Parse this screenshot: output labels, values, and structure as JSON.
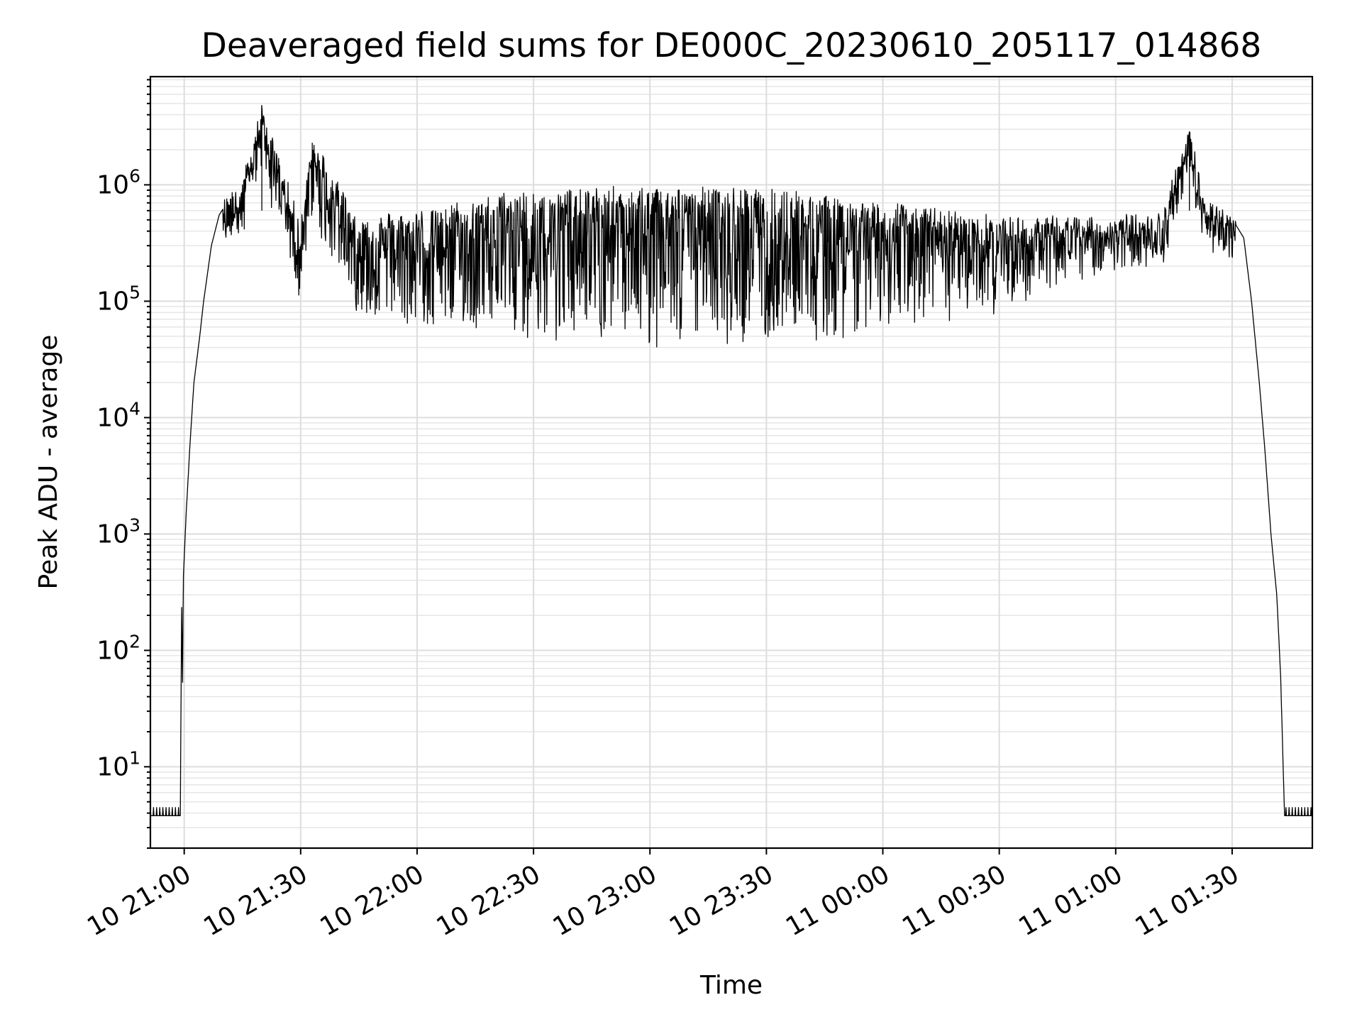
{
  "chart_data": {
    "type": "line",
    "title": "Deaveraged field sums for DE000C_20230610_205117_014868",
    "xlabel": "Time",
    "ylabel": "Peak ADU - average",
    "yscale": "log",
    "ylim": [
      2,
      8500000
    ],
    "xlim": [
      "2023-06-10 20:51:17",
      "2023-06-11 01:50:40"
    ],
    "grid": true,
    "line_color": "#000000",
    "x_ticks": [
      {
        "time": "2023-06-10 21:00:00",
        "label": "10 21:00"
      },
      {
        "time": "2023-06-10 21:30:00",
        "label": "10 21:30"
      },
      {
        "time": "2023-06-10 22:00:00",
        "label": "10 22:00"
      },
      {
        "time": "2023-06-10 22:30:00",
        "label": "10 22:30"
      },
      {
        "time": "2023-06-10 23:00:00",
        "label": "10 23:00"
      },
      {
        "time": "2023-06-10 23:30:00",
        "label": "10 23:30"
      },
      {
        "time": "2023-06-11 00:00:00",
        "label": "11 00:00"
      },
      {
        "time": "2023-06-11 00:30:00",
        "label": "11 00:30"
      },
      {
        "time": "2023-06-11 01:00:00",
        "label": "11 01:00"
      },
      {
        "time": "2023-06-11 01:30:00",
        "label": "11 01:30"
      }
    ],
    "y_ticks": [
      {
        "value": 10,
        "base": "10",
        "exp": "1"
      },
      {
        "value": 100,
        "base": "10",
        "exp": "2"
      },
      {
        "value": 1000,
        "base": "10",
        "exp": "3"
      },
      {
        "value": 10000,
        "base": "10",
        "exp": "4"
      },
      {
        "value": 100000,
        "base": "10",
        "exp": "5"
      },
      {
        "value": 1000000,
        "base": "10",
        "exp": "6"
      }
    ],
    "series": [
      {
        "points": [
          [
            "2023-06-10 20:51:17",
            3.8
          ],
          [
            "2023-06-10 20:59:00",
            3.8
          ],
          [
            "2023-06-10 20:59:20",
            250
          ],
          [
            "2023-06-10 20:59:35",
            50
          ],
          [
            "2023-06-10 20:59:45",
            400
          ],
          [
            "2023-06-10 21:00:30",
            1500
          ],
          [
            "2023-06-10 21:01:30",
            6000
          ],
          [
            "2023-06-10 21:02:30",
            20000
          ],
          [
            "2023-06-10 21:04:00",
            50000
          ],
          [
            "2023-06-10 21:05:00",
            100000
          ],
          [
            "2023-06-10 21:07:00",
            300000
          ],
          [
            "2023-06-10 21:09:00",
            550000
          ],
          [
            "2023-06-10 21:11:00",
            700000
          ],
          [
            "2023-06-10 21:12:00",
            850000
          ],
          [
            "2023-06-10 21:13:00",
            900000
          ],
          [
            "2023-06-10 21:14:00",
            700000
          ],
          [
            "2023-06-10 21:20:00",
            4200000
          ],
          [
            "2023-06-10 21:30:00",
            400000
          ],
          [
            "2023-06-10 21:33:00",
            2300000
          ],
          [
            "2023-06-10 21:45:00",
            450000
          ],
          [
            "2023-06-10 22:00:00",
            500000
          ],
          [
            "2023-06-10 22:30:00",
            800000
          ],
          [
            "2023-06-10 23:00:00",
            800000
          ],
          [
            "2023-06-10 23:30:00",
            800000
          ],
          [
            "2023-06-11 00:00:00",
            600000
          ],
          [
            "2023-06-11 00:30:00",
            450000
          ],
          [
            "2023-06-11 01:00:00",
            450000
          ],
          [
            "2023-06-11 01:12:00",
            500000
          ],
          [
            "2023-06-11 01:19:00",
            2800000
          ],
          [
            "2023-06-11 01:23:00",
            600000
          ],
          [
            "2023-06-11 01:28:00",
            550000
          ],
          [
            "2023-06-11 01:31:00",
            450000
          ],
          [
            "2023-06-11 01:33:00",
            350000
          ],
          [
            "2023-06-11 01:35:00",
            100000
          ],
          [
            "2023-06-11 01:37:00",
            20000
          ],
          [
            "2023-06-11 01:38:30",
            5000
          ],
          [
            "2023-06-11 01:40:00",
            1000
          ],
          [
            "2023-06-11 01:41:30",
            300
          ],
          [
            "2023-06-11 01:42:30",
            60
          ],
          [
            "2023-06-11 01:43:30",
            3.8
          ],
          [
            "2023-06-11 01:50:40",
            3.8
          ]
        ]
      }
    ]
  }
}
